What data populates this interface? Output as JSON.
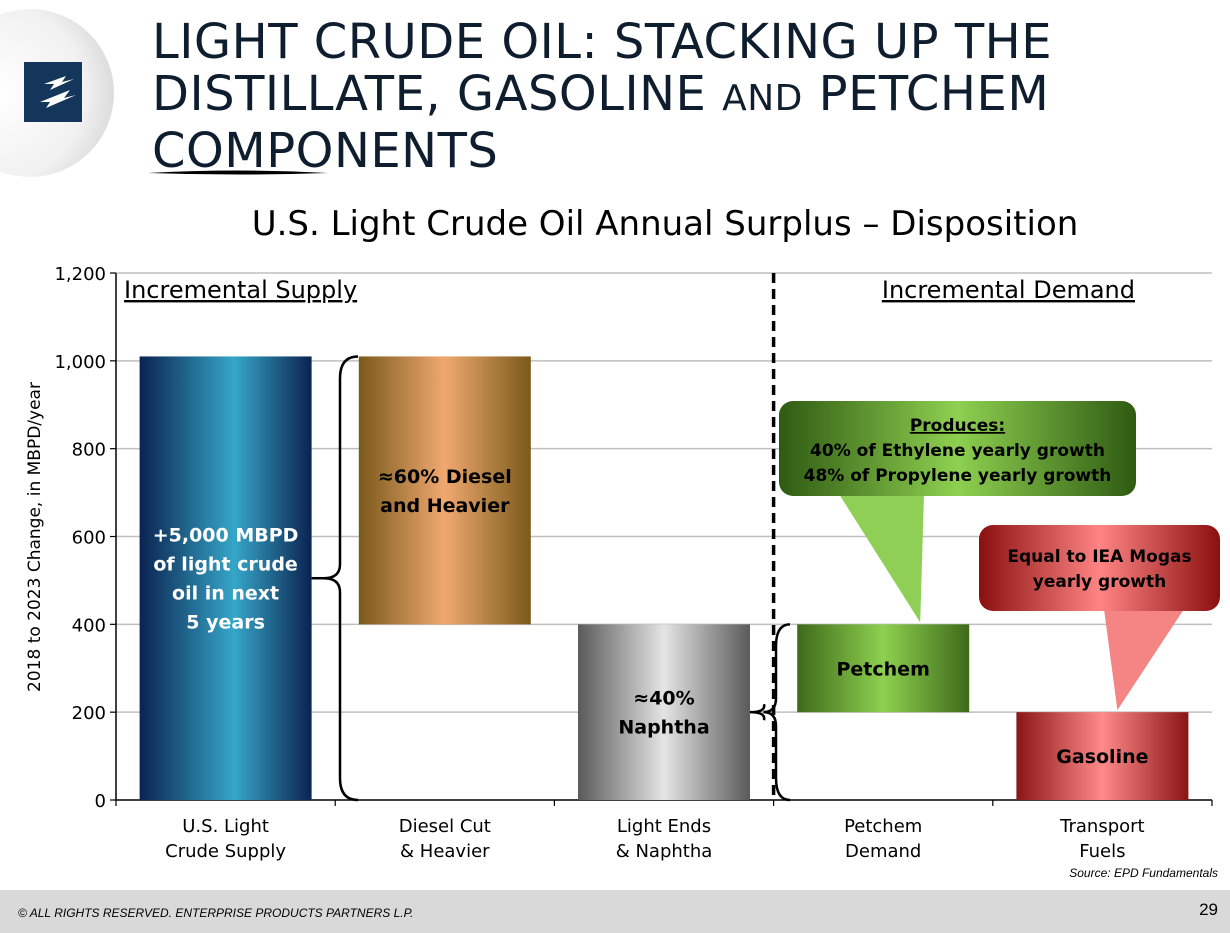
{
  "slide": {
    "title_line1": "LIGHT CRUDE OIL:  STACKING UP THE",
    "title_line2_a": "DISTILLATE, GASOLINE ",
    "title_line2_b": "AND",
    "title_line2_c": " PETCHEM",
    "title_line3": "COMPONENTS",
    "footer": "© ALL RIGHTS RESERVED. ENTERPRISE PRODUCTS PARTNERS L.P.",
    "page_number": "29",
    "source": "Source:  EPD Fundamentals",
    "logo_icon": "enterprise-logo-icon"
  },
  "chart_data": {
    "type": "bar",
    "title": "U.S. Light Crude Oil Annual Surplus – Disposition",
    "ylabel": "2018 to 2023 Change, in MBPD/year",
    "ylim": [
      0,
      1200
    ],
    "yticks": [
      0,
      200,
      400,
      600,
      800,
      1000,
      1200
    ],
    "ytick_labels": [
      "0",
      "200",
      "400",
      "600",
      "800",
      "1,000",
      "1,200"
    ],
    "grid": true,
    "categories": [
      [
        "U.S. Light",
        "Crude Supply"
      ],
      [
        "Diesel Cut",
        "& Heavier"
      ],
      [
        "Light Ends",
        "& Naphtha"
      ],
      [
        "Petchem",
        "Demand"
      ],
      [
        "Transport",
        "Fuels"
      ]
    ],
    "bars": [
      {
        "bottom": 0,
        "top": 1010,
        "label": [
          "+5,000 MBPD",
          "of light crude",
          "oil in next",
          "5 years"
        ],
        "color": "#1a5a8a"
      },
      {
        "bottom": 400,
        "top": 1010,
        "label": [
          "≈60% Diesel",
          "and Heavier"
        ],
        "color": "#c8884a"
      },
      {
        "bottom": 0,
        "top": 400,
        "label": [
          "≈40%",
          "Naphtha"
        ],
        "color": "#a8a8a8"
      },
      {
        "bottom": 200,
        "top": 400,
        "label": [
          "Petchem"
        ],
        "color": "#7ab84a"
      },
      {
        "bottom": 0,
        "top": 200,
        "label": [
          "Gasoline"
        ],
        "color": "#d06060"
      }
    ],
    "section_labels": {
      "left": "Incremental Supply",
      "right": "Incremental Demand"
    },
    "callouts": [
      {
        "heading": "Produces:",
        "lines": [
          "40% of Ethylene yearly growth",
          "48% of Propylene yearly growth"
        ]
      },
      {
        "heading": "",
        "lines": [
          "Equal to IEA Mogas",
          "yearly growth"
        ]
      }
    ]
  }
}
